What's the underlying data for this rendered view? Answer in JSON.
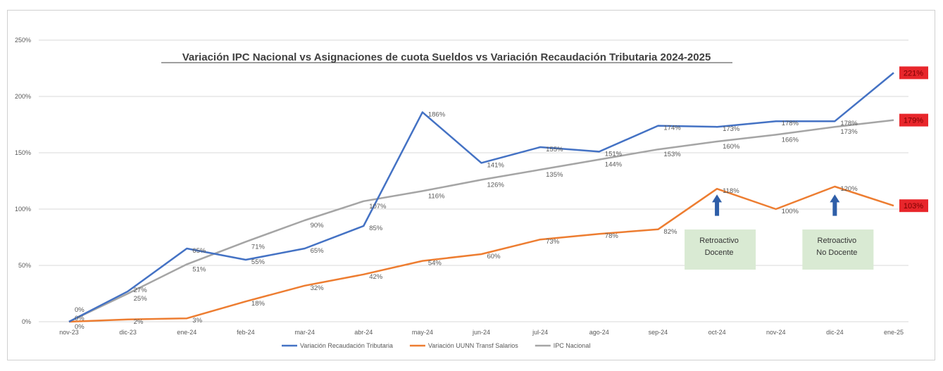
{
  "chart_data": {
    "type": "line",
    "title": "Variación IPC Nacional vs Asignaciones de cuota Sueldos vs Variación Recaudación Tributaria 2024-2025",
    "categories": [
      "nov-23",
      "dic-23",
      "ene-24",
      "feb-24",
      "mar-24",
      "abr-24",
      "may-24",
      "jun-24",
      "jul-24",
      "ago-24",
      "sep-24",
      "oct-24",
      "nov-24",
      "dic-24",
      "ene-25"
    ],
    "ylim": [
      0,
      250
    ],
    "yticks": [
      0,
      50,
      100,
      150,
      200,
      250
    ],
    "ytick_labels": [
      "0%",
      "50%",
      "100%",
      "150%",
      "200%",
      "250%"
    ],
    "grid": true,
    "legend_position": "bottom",
    "series": [
      {
        "name": "Variación Recaudación Tributaria",
        "color": "#4472c4",
        "values": [
          0,
          27,
          65,
          55,
          65,
          85,
          186,
          141,
          155,
          151,
          174,
          173,
          178,
          178,
          221
        ]
      },
      {
        "name": "Variación UUNN Transf Salarios",
        "color": "#ed7d31",
        "values": [
          0,
          2,
          3,
          18,
          32,
          42,
          54,
          60,
          73,
          78,
          82,
          118,
          100,
          120,
          103
        ]
      },
      {
        "name": "IPC Nacional",
        "color": "#a5a5a5",
        "values": [
          0,
          25,
          51,
          71,
          90,
          107,
          116,
          126,
          135,
          144,
          153,
          160,
          166,
          173,
          179
        ]
      }
    ],
    "end_labels": [
      {
        "text": "221%",
        "value": 221,
        "color": "#e8262b"
      },
      {
        "text": "179%",
        "value": 179,
        "color": "#e8262b"
      },
      {
        "text": "103%",
        "value": 103,
        "color": "#e8262b"
      }
    ],
    "annotations": [
      {
        "category": "oct-24",
        "line1": "Retroactivo",
        "line2": "Docente",
        "arrow_color": "#2e5ea8",
        "box_color": "#d9ead3"
      },
      {
        "category": "dic-24",
        "line1": "Retroactivo",
        "line2": "No Docente",
        "arrow_color": "#2e5ea8",
        "box_color": "#d9ead3"
      }
    ]
  }
}
